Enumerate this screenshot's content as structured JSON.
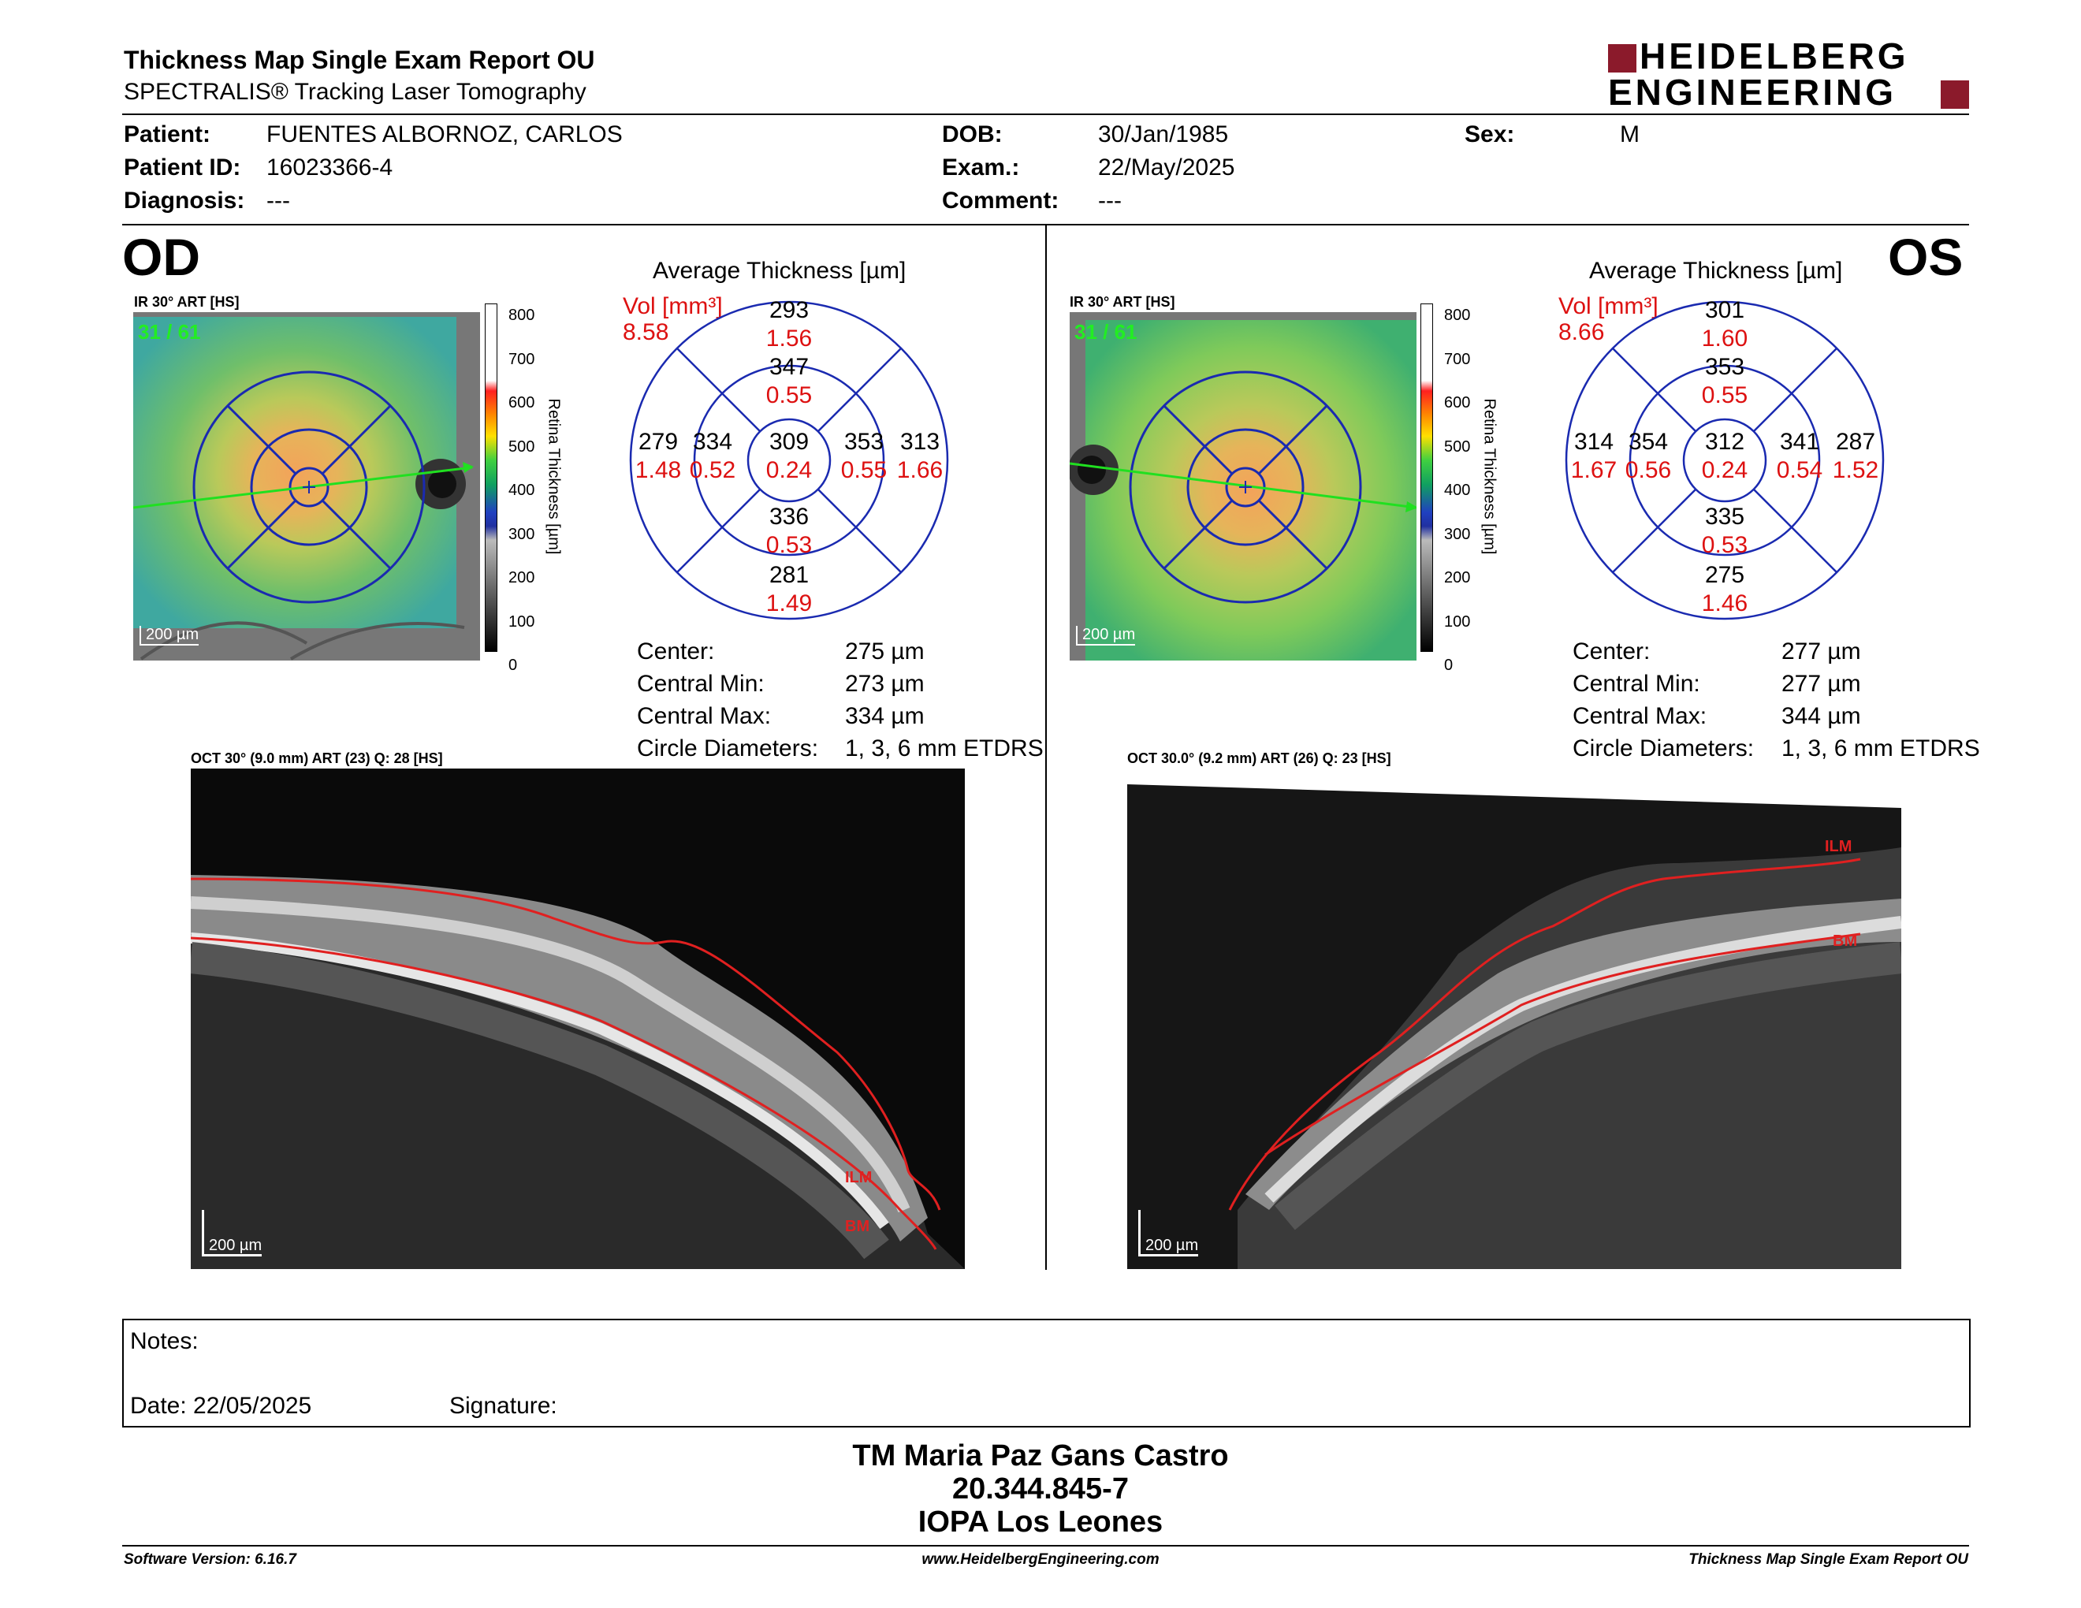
{
  "header": {
    "title": "Thickness Map Single Exam Report OU",
    "subtitle": "SPECTRALIS® Tracking Laser Tomography",
    "logo_line1": "HEIDELBERG",
    "logo_line2": "ENGINEERING",
    "brand_color": "#8b1a2b"
  },
  "patient": {
    "patient_label": "Patient:",
    "patient_value": "FUENTES ALBORNOZ, CARLOS",
    "id_label": "Patient ID:",
    "id_value": "16023366-4",
    "diagnosis_label": "Diagnosis:",
    "diagnosis_value": "---",
    "dob_label": "DOB:",
    "dob_value": "30/Jan/1985",
    "exam_label": "Exam.:",
    "exam_value": "22/May/2025",
    "comment_label": "Comment:",
    "comment_value": "---",
    "sex_label": "Sex:",
    "sex_value": "M"
  },
  "scale": {
    "ticks": [
      "800",
      "700",
      "600",
      "500",
      "400",
      "300",
      "200",
      "100",
      "0"
    ],
    "label": "Retina  Thickness [µm]"
  },
  "od": {
    "eye": "OD",
    "ir_label": "IR 30° ART [HS]",
    "frame": "31 / 61",
    "scalebar": "200 µm",
    "etdrs_title": "Average Thickness [µm]",
    "vol_label": "Vol [mm³]",
    "vol_value": "8.58",
    "sectors": {
      "center": {
        "t": "309",
        "v": "0.24"
      },
      "inner_sup": {
        "t": "347",
        "v": "0.55"
      },
      "inner_inf": {
        "t": "336",
        "v": "0.53"
      },
      "inner_left": {
        "t": "334",
        "v": "0.52"
      },
      "inner_right": {
        "t": "353",
        "v": "0.55"
      },
      "outer_sup": {
        "t": "293",
        "v": "1.56"
      },
      "outer_inf": {
        "t": "281",
        "v": "1.49"
      },
      "outer_left": {
        "t": "279",
        "v": "1.48"
      },
      "outer_right": {
        "t": "313",
        "v": "1.66"
      }
    },
    "stats": {
      "center_label": "Center:",
      "center_value": "275 µm",
      "min_label": "Central Min:",
      "min_value": "273 µm",
      "max_label": "Central Max:",
      "max_value": "334 µm",
      "diam_label": "Circle Diameters:",
      "diam_value": "1, 3, 6 mm ETDRS"
    },
    "oct_label": "OCT 30° (9.0 mm) ART (23) Q: 28 [HS]",
    "oct_scalebar": "200 µm",
    "ilm": "ILM",
    "bm": "BM"
  },
  "os": {
    "eye": "OS",
    "ir_label": "IR 30° ART [HS]",
    "frame": "31 / 61",
    "scalebar": "200 µm",
    "etdrs_title": "Average Thickness [µm]",
    "vol_label": "Vol [mm³]",
    "vol_value": "8.66",
    "sectors": {
      "center": {
        "t": "312",
        "v": "0.24"
      },
      "inner_sup": {
        "t": "353",
        "v": "0.55"
      },
      "inner_inf": {
        "t": "335",
        "v": "0.53"
      },
      "inner_left": {
        "t": "354",
        "v": "0.56"
      },
      "inner_right": {
        "t": "341",
        "v": "0.54"
      },
      "outer_sup": {
        "t": "301",
        "v": "1.60"
      },
      "outer_inf": {
        "t": "275",
        "v": "1.46"
      },
      "outer_left": {
        "t": "314",
        "v": "1.67"
      },
      "outer_right": {
        "t": "287",
        "v": "1.52"
      }
    },
    "stats": {
      "center_label": "Center:",
      "center_value": "277 µm",
      "min_label": "Central Min:",
      "min_value": "277 µm",
      "max_label": "Central Max:",
      "max_value": "344 µm",
      "diam_label": "Circle Diameters:",
      "diam_value": "1, 3, 6 mm ETDRS"
    },
    "oct_label": "OCT 30.0° (9.2 mm) ART (26) Q: 23 [HS]",
    "oct_scalebar": "200 µm",
    "ilm": "ILM",
    "bm": "BM"
  },
  "notes": {
    "notes_label": "Notes:",
    "date_label": "Date: 22/05/2025",
    "signature_label": "Signature:"
  },
  "signature_block": {
    "line1": "TM Maria Paz Gans Castro",
    "line2": "20.344.845-7",
    "line3": "IOPA Los Leones"
  },
  "footer": {
    "left": "Software Version: 6.16.7",
    "center": "www.HeidelbergEngineering.com",
    "right": "Thickness Map Single Exam Report OU"
  }
}
